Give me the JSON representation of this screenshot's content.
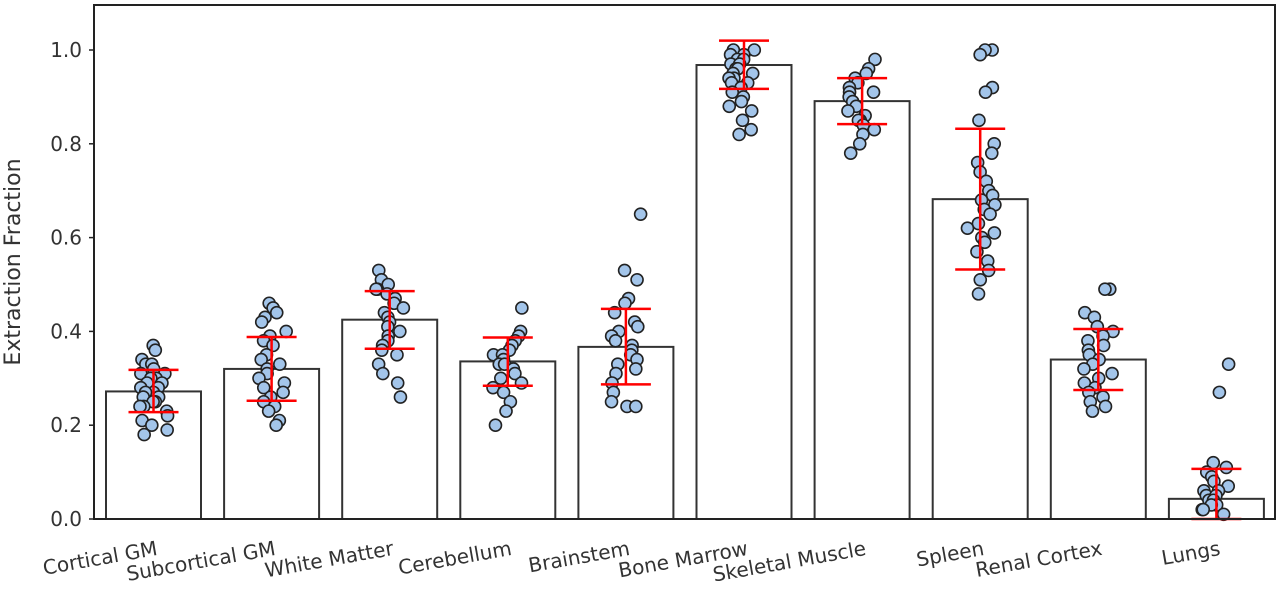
{
  "chart_data": {
    "type": "bar",
    "title": "",
    "xlabel": "",
    "ylabel": "Extraction Fraction",
    "ylim": [
      0.0,
      1.1
    ],
    "yticks": [
      "0.0",
      "0.2",
      "0.4",
      "0.6",
      "0.8",
      "1.0"
    ],
    "grid": false,
    "categories": [
      "Cortical GM",
      "Subcortical GM",
      "White Matter",
      "Cerebellum",
      "Brainstem",
      "Bone Marrow",
      "Skeletal Muscle",
      "Spleen",
      "Renal Cortex",
      "Lungs"
    ],
    "values": [
      0.272,
      0.32,
      0.425,
      0.336,
      0.367,
      0.968,
      0.891,
      0.682,
      0.34,
      0.043
    ],
    "error_bars": [
      {
        "low": 0.228,
        "high": 0.318
      },
      {
        "low": 0.252,
        "high": 0.388
      },
      {
        "low": 0.363,
        "high": 0.486
      },
      {
        "low": 0.284,
        "high": 0.387
      },
      {
        "low": 0.287,
        "high": 0.448
      },
      {
        "low": 0.917,
        "high": 1.02
      },
      {
        "low": 0.842,
        "high": 0.94
      },
      {
        "low": 0.532,
        "high": 0.832
      },
      {
        "low": 0.275,
        "high": 0.405
      },
      {
        "low": 0.0,
        "high": 0.107
      }
    ],
    "points": [
      [
        0.37,
        0.36,
        0.34,
        0.33,
        0.33,
        0.32,
        0.31,
        0.31,
        0.3,
        0.3,
        0.29,
        0.29,
        0.28,
        0.28,
        0.27,
        0.27,
        0.26,
        0.26,
        0.25,
        0.25,
        0.24,
        0.24,
        0.23,
        0.22,
        0.21,
        0.2,
        0.19,
        0.18
      ],
      [
        0.46,
        0.45,
        0.44,
        0.43,
        0.42,
        0.4,
        0.39,
        0.38,
        0.37,
        0.35,
        0.34,
        0.33,
        0.32,
        0.31,
        0.3,
        0.29,
        0.28,
        0.27,
        0.26,
        0.25,
        0.24,
        0.23,
        0.21,
        0.2
      ],
      [
        0.53,
        0.51,
        0.5,
        0.49,
        0.49,
        0.48,
        0.47,
        0.46,
        0.45,
        0.44,
        0.43,
        0.42,
        0.41,
        0.4,
        0.39,
        0.38,
        0.37,
        0.36,
        0.35,
        0.33,
        0.31,
        0.29,
        0.26
      ],
      [
        0.45,
        0.4,
        0.39,
        0.38,
        0.37,
        0.36,
        0.35,
        0.35,
        0.34,
        0.33,
        0.33,
        0.32,
        0.31,
        0.3,
        0.29,
        0.28,
        0.27,
        0.25,
        0.23,
        0.2
      ],
      [
        0.65,
        0.53,
        0.51,
        0.47,
        0.46,
        0.44,
        0.42,
        0.41,
        0.4,
        0.39,
        0.38,
        0.37,
        0.36,
        0.35,
        0.34,
        0.33,
        0.32,
        0.31,
        0.29,
        0.27,
        0.25,
        0.24,
        0.24
      ],
      [
        1.0,
        1.0,
        0.99,
        0.99,
        0.98,
        0.98,
        0.97,
        0.97,
        0.96,
        0.96,
        0.95,
        0.95,
        0.94,
        0.94,
        0.93,
        0.93,
        0.92,
        0.91,
        0.9,
        0.89,
        0.88,
        0.87,
        0.85,
        0.83,
        0.82
      ],
      [
        0.98,
        0.96,
        0.95,
        0.94,
        0.93,
        0.92,
        0.91,
        0.91,
        0.9,
        0.89,
        0.88,
        0.87,
        0.86,
        0.85,
        0.85,
        0.84,
        0.83,
        0.82,
        0.8,
        0.78
      ],
      [
        1.0,
        1.0,
        0.99,
        0.92,
        0.91,
        0.85,
        0.8,
        0.78,
        0.76,
        0.74,
        0.72,
        0.7,
        0.69,
        0.68,
        0.67,
        0.66,
        0.65,
        0.63,
        0.62,
        0.61,
        0.6,
        0.59,
        0.57,
        0.55,
        0.53,
        0.51,
        0.48
      ],
      [
        0.49,
        0.49,
        0.44,
        0.43,
        0.41,
        0.4,
        0.39,
        0.38,
        0.37,
        0.36,
        0.35,
        0.34,
        0.33,
        0.32,
        0.31,
        0.3,
        0.29,
        0.28,
        0.27,
        0.26,
        0.25,
        0.24,
        0.23
      ],
      [
        0.33,
        0.27,
        0.12,
        0.11,
        0.1,
        0.09,
        0.08,
        0.07,
        0.06,
        0.06,
        0.05,
        0.05,
        0.04,
        0.04,
        0.03,
        0.03,
        0.02,
        0.02,
        0.01
      ]
    ],
    "colors": {
      "bar_fill": "#ffffff",
      "bar_edge": "#333333",
      "point_fill": "#a3c5ea",
      "point_edge": "#222222",
      "error_bar": "#ff0000",
      "axes": "#222222"
    }
  }
}
